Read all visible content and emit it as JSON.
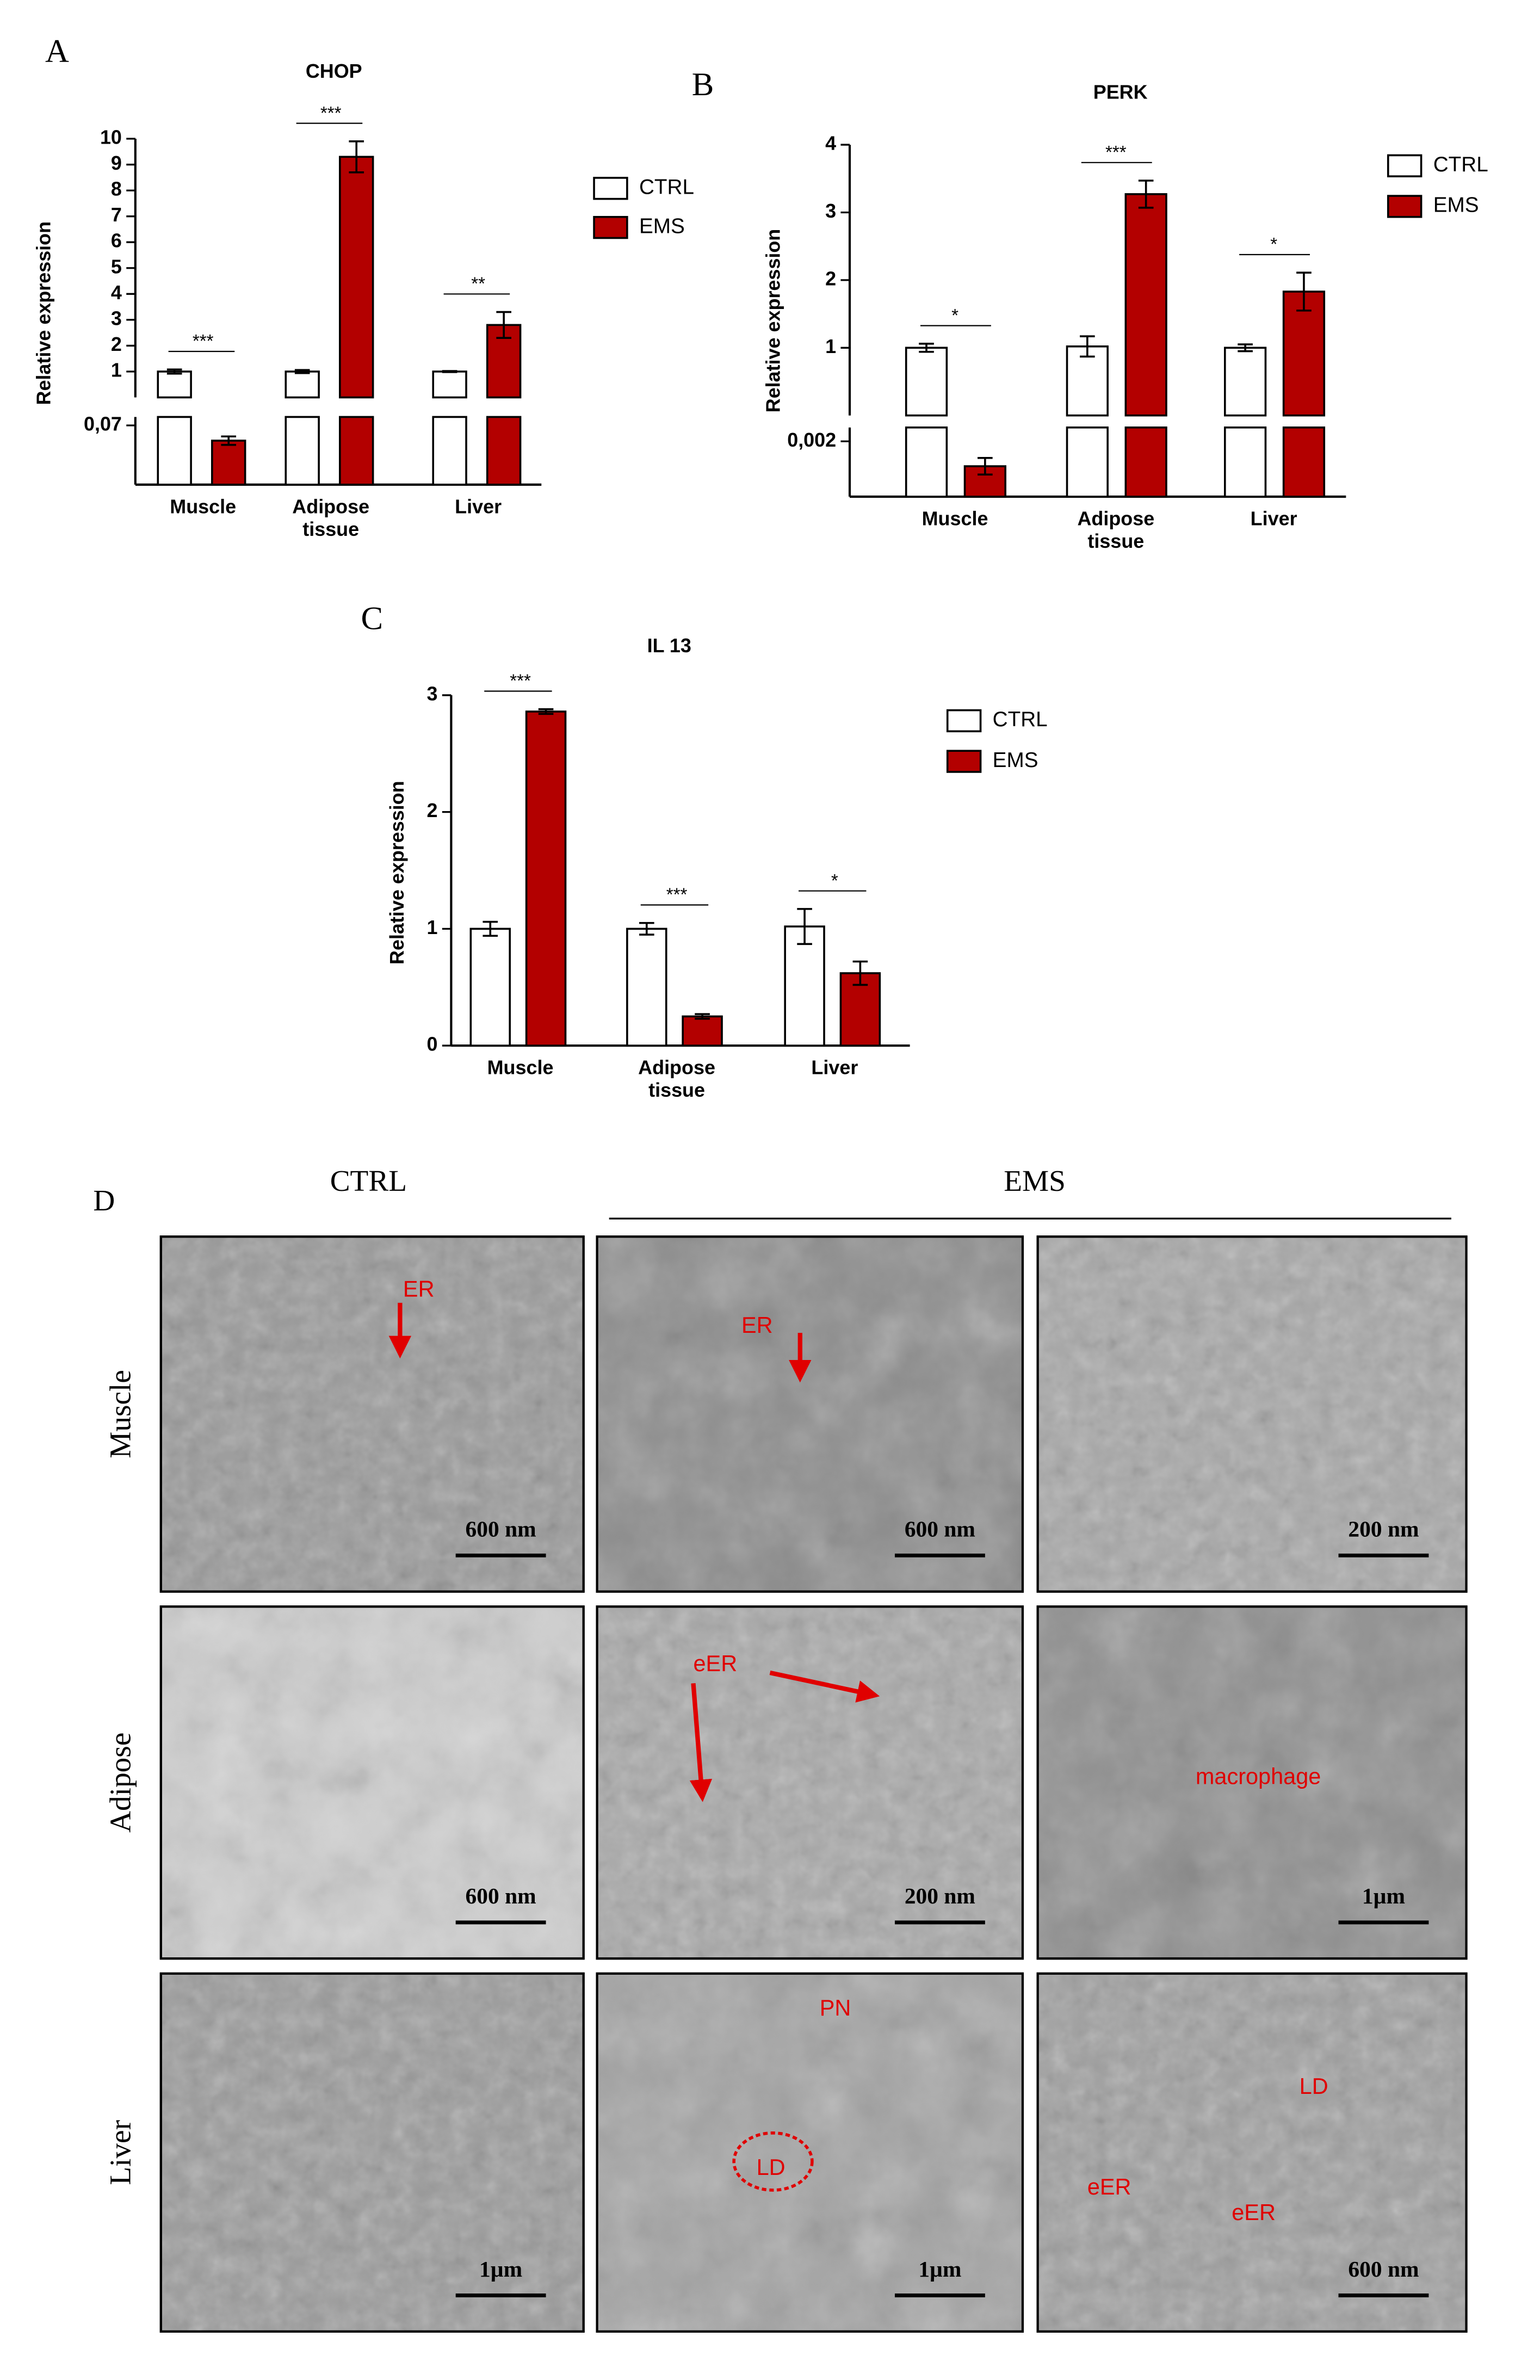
{
  "chart_data": [
    {
      "type": "bar",
      "panel_label": "A",
      "title": "CHOP",
      "y_label": "Relative expression",
      "categories": [
        "Muscle",
        "Adipose tissue",
        "Liver"
      ],
      "series": [
        {
          "name": "CTRL",
          "color": "#ffffff",
          "values": [
            1,
            1,
            1
          ],
          "errors": [
            0.08,
            0.06,
            0.02
          ]
        },
        {
          "name": "EMS",
          "color": "#b30000",
          "values": [
            0.052,
            9.3,
            2.8
          ],
          "errors": [
            0.005,
            0.6,
            0.5
          ]
        }
      ],
      "significance": [
        "***",
        "***",
        "**"
      ],
      "ylim_lower": [
        0,
        0.08
      ],
      "yticks_lower": [
        {
          "value": 0.07,
          "label": "0,07"
        }
      ],
      "ylim": [
        0,
        10
      ],
      "yticks": [
        1,
        2,
        3,
        4,
        5,
        6,
        7,
        8,
        9,
        10
      ]
    },
    {
      "type": "bar",
      "panel_label": "B",
      "title": "PERK",
      "y_label": "Relative expression",
      "categories": [
        "Muscle",
        "Adipose tissue",
        "Liver"
      ],
      "series": [
        {
          "name": "CTRL",
          "color": "#ffffff",
          "values": [
            1,
            1.02,
            1
          ],
          "errors": [
            0.06,
            0.15,
            0.05
          ]
        },
        {
          "name": "EMS",
          "color": "#b30000",
          "values": [
            0.0011,
            3.27,
            1.83
          ],
          "errors": [
            0.0003,
            0.2,
            0.28
          ]
        }
      ],
      "significance": [
        "*",
        "***",
        "*"
      ],
      "ylim_lower": [
        0,
        0.0025
      ],
      "yticks_lower": [
        {
          "value": 0.002,
          "label": "0,002"
        }
      ],
      "ylim": [
        0,
        4
      ],
      "yticks": [
        1,
        2,
        3,
        4
      ]
    },
    {
      "type": "bar",
      "panel_label": "C",
      "title": "IL 13",
      "y_label": "Relative expression",
      "categories": [
        "Muscle",
        "Adipose tissue",
        "Liver"
      ],
      "series": [
        {
          "name": "CTRL",
          "color": "#ffffff",
          "values": [
            1,
            1,
            1.02
          ],
          "errors": [
            0.06,
            0.05,
            0.15
          ]
        },
        {
          "name": "EMS",
          "color": "#b30000",
          "values": [
            2.86,
            0.25,
            0.62
          ],
          "errors": [
            0.02,
            0.02,
            0.1
          ]
        }
      ],
      "significance": [
        "***",
        "***",
        "*"
      ],
      "ylim": [
        0,
        3
      ],
      "yticks": [
        0,
        1,
        2,
        3
      ]
    }
  ],
  "panel_d": {
    "label": "D",
    "column_headers": [
      "CTRL",
      "EMS"
    ],
    "row_labels": [
      "Muscle",
      "Adipose",
      "Liver"
    ],
    "images": [
      [
        {
          "scale_bar": "600 nm",
          "annotations": [
            "ER"
          ]
        },
        {
          "scale_bar": "600 nm",
          "annotations": [
            "ER"
          ]
        },
        {
          "scale_bar": "200 nm",
          "annotations": []
        }
      ],
      [
        {
          "scale_bar": "600 nm",
          "annotations": []
        },
        {
          "scale_bar": "200 nm",
          "annotations": [
            "eER"
          ]
        },
        {
          "scale_bar": "1µm",
          "annotations": [
            "macrophage"
          ]
        }
      ],
      [
        {
          "scale_bar": "1µm",
          "annotations": []
        },
        {
          "scale_bar": "1µm",
          "annotations": [
            "PN",
            "LD"
          ]
        },
        {
          "scale_bar": "600 nm",
          "annotations": [
            "LD",
            "eER",
            "eER"
          ]
        }
      ]
    ]
  }
}
